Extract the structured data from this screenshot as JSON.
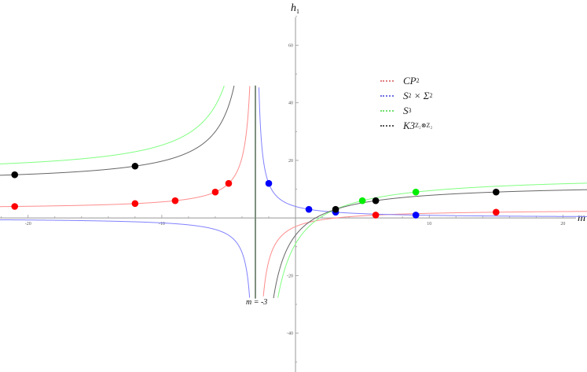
{
  "chart_data": {
    "type": "line",
    "title": "",
    "xlabel": "m",
    "ylabel": "h",
    "ylabel_sub": "1",
    "xlim": [
      -22.1,
      21.8
    ],
    "ylim": [
      -53.5,
      75.7
    ],
    "curve_clip": [
      -28,
      46
    ],
    "x_ticks": [
      -20,
      -10,
      10,
      20
    ],
    "x_minor_step": 2,
    "y_ticks": [
      -40,
      -20,
      20,
      40,
      60
    ],
    "y_minor_step": 10,
    "asymptote": {
      "x": -3,
      "label": "m = -3",
      "color": "#7f8f7f"
    },
    "formula_note": "h = (a*m + b)/(m + 3)",
    "series": [
      {
        "name": "CP2",
        "label": "CP",
        "sub": "2",
        "a": 3,
        "b": -9,
        "line_color": "#ff8c8c",
        "point_color": "#ff0000",
        "points": [
          [
            -21,
            4
          ],
          [
            -12,
            5
          ],
          [
            -9,
            6
          ],
          [
            -6,
            9
          ],
          [
            -5,
            12
          ],
          [
            6,
            1
          ],
          [
            15,
            2
          ]
        ]
      },
      {
        "name": "S2xSigma2",
        "label": "S",
        "sup": "2",
        "mid": " × Σ",
        "sub": "2",
        "a": 0,
        "b": 12,
        "line_color": "#8080ff",
        "point_color": "#0000ff",
        "points": [
          [
            -2,
            12
          ],
          [
            1,
            3
          ],
          [
            3,
            2
          ],
          [
            9,
            1
          ]
        ]
      },
      {
        "name": "S3",
        "label": "S",
        "sub": "3",
        "a": 15,
        "b": -27,
        "line_color": "#80ff80",
        "point_color": "#00ee00",
        "points": [
          [
            5,
            6
          ],
          [
            9,
            9
          ]
        ]
      },
      {
        "name": "K3_Z2xZ2",
        "label": "K3",
        "sub": "Z₂⊗Z₂",
        "a": 12,
        "b": -18,
        "line_color": "#666666",
        "point_color": "#000000",
        "points": [
          [
            -21,
            15
          ],
          [
            -12,
            18
          ],
          [
            3,
            3
          ],
          [
            6,
            6
          ],
          [
            15,
            9
          ]
        ]
      }
    ],
    "legend_position": "upper-right"
  }
}
